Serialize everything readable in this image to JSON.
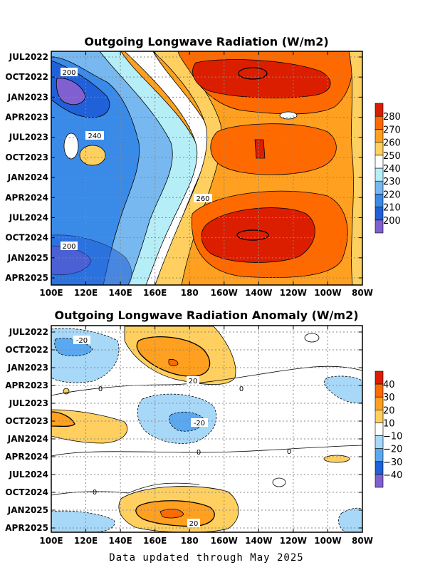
{
  "footer": "Data updated through May 2025",
  "chart_data": [
    {
      "type": "heatmap",
      "title": "Outgoing Longwave Radiation (W/m2)",
      "x_ticks": [
        "100E",
        "120E",
        "140E",
        "160E",
        "180",
        "160W",
        "140W",
        "120W",
        "100W",
        "80W"
      ],
      "y_ticks": [
        "JUL2022",
        "OCT2022",
        "JAN2023",
        "APR2023",
        "JUL2023",
        "OCT2023",
        "JAN2024",
        "APR2024",
        "JUL2024",
        "OCT2024",
        "JAN2025",
        "APR2025"
      ],
      "colorbar": {
        "labels": [
          "200",
          "210",
          "220",
          "230",
          "240",
          "250",
          "260",
          "270",
          "280"
        ],
        "colors": [
          "#8060d0",
          "#2060d8",
          "#3a8ae8",
          "#78b8f0",
          "#b6eef8",
          "#ffffff",
          "#ffd060",
          "#ffa020",
          "#ff6a00",
          "#dc1e00"
        ]
      },
      "contour_labels": [
        "200",
        "240",
        "260",
        "200"
      ],
      "grid": true
    },
    {
      "type": "heatmap",
      "title": "Outgoing Longwave Radiation Anomaly (W/m2)",
      "x_ticks": [
        "100E",
        "120E",
        "140E",
        "160E",
        "180",
        "160W",
        "140W",
        "120W",
        "100W",
        "80W"
      ],
      "y_ticks": [
        "JUL2022",
        "OCT2022",
        "JAN2023",
        "APR2023",
        "JUL2023",
        "OCT2023",
        "JAN2024",
        "APR2024",
        "JUL2024",
        "OCT2024",
        "JAN2025",
        "APR2025"
      ],
      "colorbar": {
        "labels": [
          "40",
          "30",
          "20",
          "10",
          "−10",
          "−20",
          "−30",
          "−40"
        ],
        "colors": [
          "#dc1e00",
          "#ff6a00",
          "#ffa020",
          "#ffd060",
          "#ffffff",
          "#a8d8f8",
          "#5aa8f0",
          "#2060d8",
          "#8060d0"
        ]
      },
      "contour_labels": [
        "-20",
        "20",
        "0",
        "0",
        "-20",
        "0",
        "0",
        "0",
        "20"
      ],
      "grid": true
    }
  ]
}
